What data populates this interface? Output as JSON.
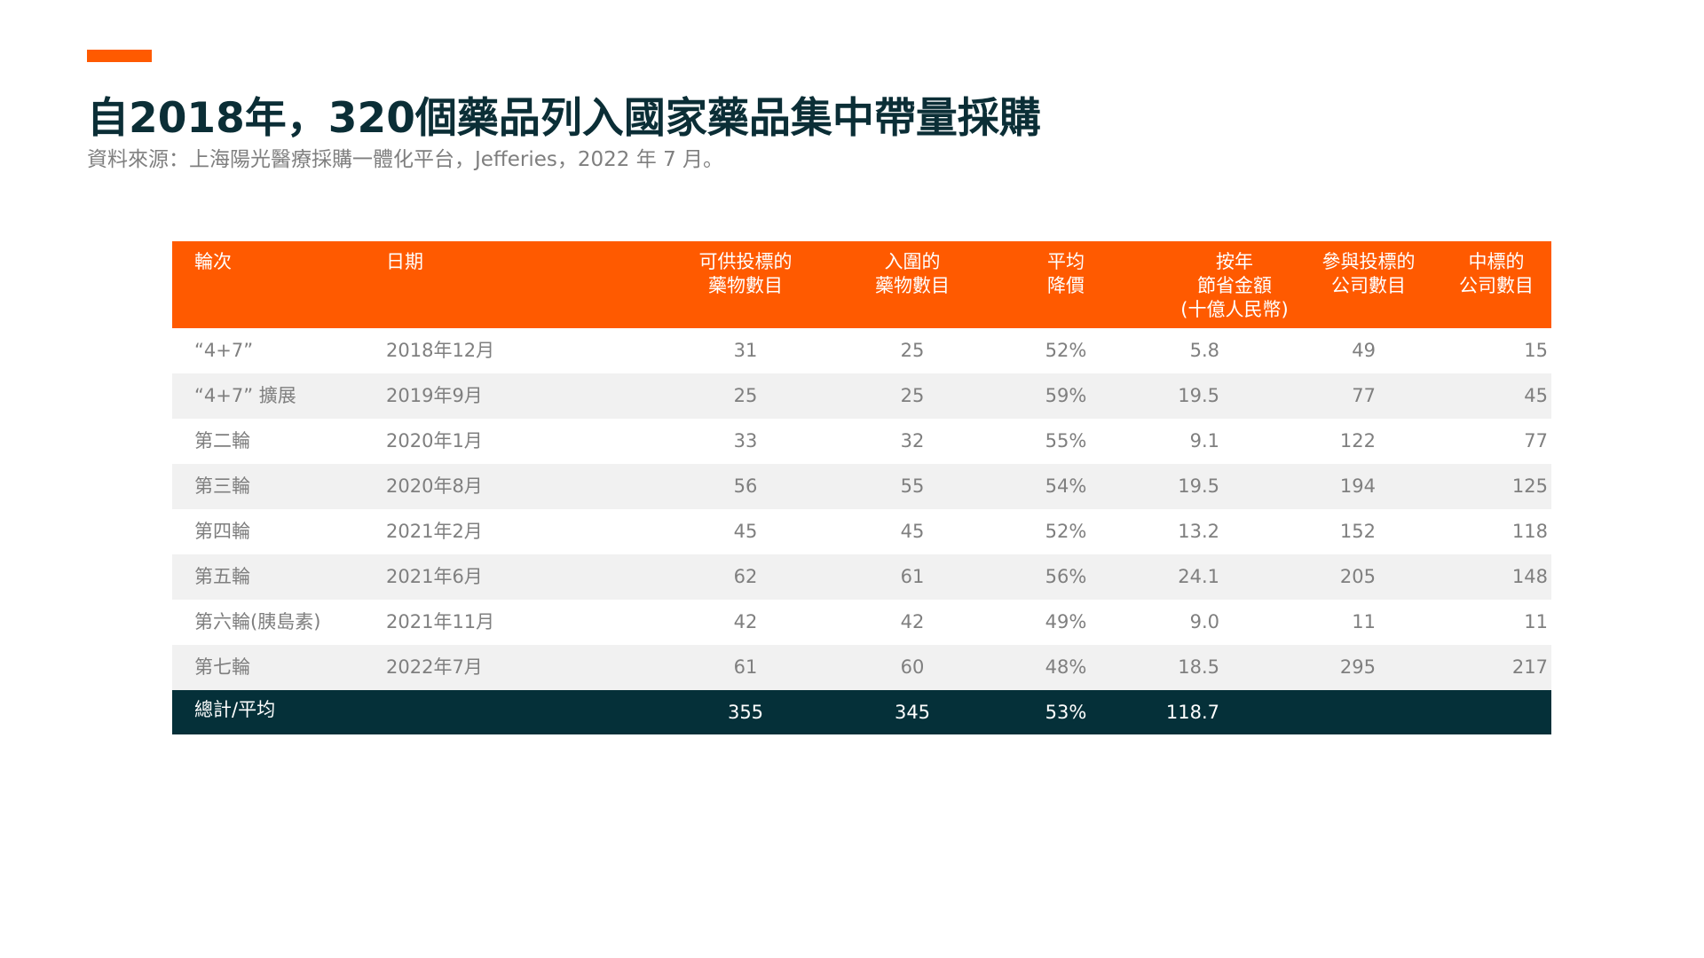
{
  "title": "自2018年，320個藥品列入國家藥品集中帶量採購",
  "source": "資料來源：上海陽光醫療採購一體化平台，Jefferies，2022 年 7 月。",
  "colors": {
    "accent": "#ff5a00",
    "title": "#0b2e36",
    "total_row": "#053039",
    "alt_row": "#f1f1f1",
    "text": "#7f7f7f"
  },
  "table": {
    "headers": [
      "輪次",
      "日期",
      "可供投標的\n藥物數目",
      "入圍的\n藥物數目",
      "平均\n降價",
      "按年\n節省金額\n(十億人民幣)",
      "參與投標的\n公司數目",
      "中標的\n公司數目"
    ],
    "rows": [
      [
        "“4+7”",
        "2018年12月",
        "31",
        "25",
        "52%",
        "5.8",
        "49",
        "15"
      ],
      [
        "“4+7” 擴展",
        "2019年9月",
        "25",
        "25",
        "59%",
        "19.5",
        "77",
        "45"
      ],
      [
        "第二輪",
        "2020年1月",
        "33",
        "32",
        "55%",
        "9.1",
        "122",
        "77"
      ],
      [
        "第三輪",
        "2020年8月",
        "56",
        "55",
        "54%",
        "19.5",
        "194",
        "125"
      ],
      [
        "第四輪",
        "2021年2月",
        "45",
        "45",
        "52%",
        "13.2",
        "152",
        "118"
      ],
      [
        "第五輪",
        "2021年6月",
        "62",
        "61",
        "56%",
        "24.1",
        "205",
        "148"
      ],
      [
        "第六輪(胰島素)",
        "2021年11月",
        "42",
        "42",
        "49%",
        "9.0",
        "11",
        "11"
      ],
      [
        "第七輪",
        "2022年7月",
        "61",
        "60",
        "48%",
        "18.5",
        "295",
        "217"
      ]
    ],
    "total": {
      "label": "總計/平均",
      "drugs_available": "355",
      "drugs_selected": "345",
      "avg_price_cut": "53%",
      "annual_savings": "118.7"
    }
  }
}
